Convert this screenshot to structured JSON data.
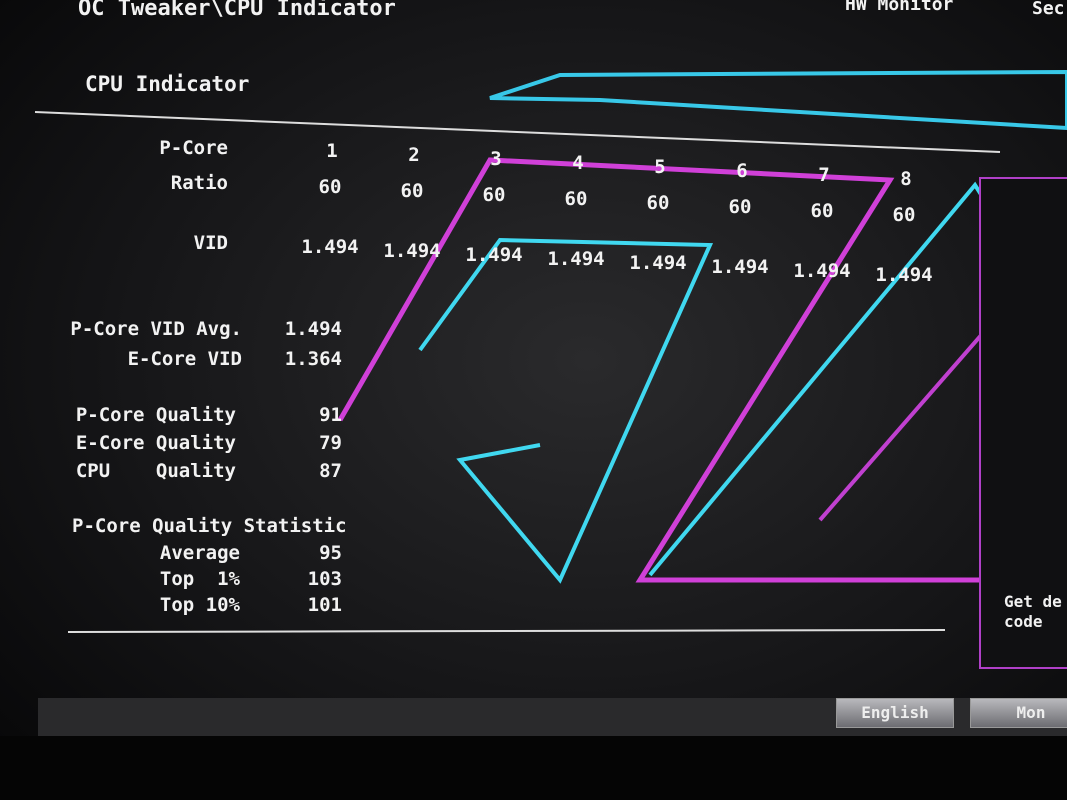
{
  "header": {
    "breadcrumb": "OC Tweaker\\CPU Indicator",
    "tabs": [
      "HW Monitor",
      "Sec"
    ]
  },
  "section_title": "CPU Indicator",
  "core_table": {
    "header_label": "P-Core",
    "cores": [
      1,
      2,
      3,
      4,
      5,
      6,
      7,
      8
    ],
    "rows": [
      {
        "label": "Ratio",
        "values": [
          60,
          60,
          60,
          60,
          60,
          60,
          60,
          60
        ]
      },
      {
        "label": "VID",
        "values": [
          1.494,
          1.494,
          1.494,
          1.494,
          1.494,
          1.494,
          1.494,
          1.494
        ]
      }
    ]
  },
  "vid_summary": [
    {
      "label": "P-Core VID Avg.",
      "value": 1.494
    },
    {
      "label": "E-Core VID",
      "value": 1.364
    }
  ],
  "quality": [
    {
      "label": "P-Core Quality",
      "value": 91
    },
    {
      "label": "E-Core Quality",
      "value": 79
    },
    {
      "label": "CPU    Quality",
      "value": 87
    }
  ],
  "statistic": {
    "title": "P-Core Quality Statistic",
    "rows": [
      {
        "label": "Average",
        "value": 95
      },
      {
        "label": "Top  1%",
        "value": 103
      },
      {
        "label": "Top 10%",
        "value": 101
      }
    ]
  },
  "help_text": [
    "Get de",
    "code"
  ],
  "footer_buttons": [
    "English",
    "Mon"
  ]
}
